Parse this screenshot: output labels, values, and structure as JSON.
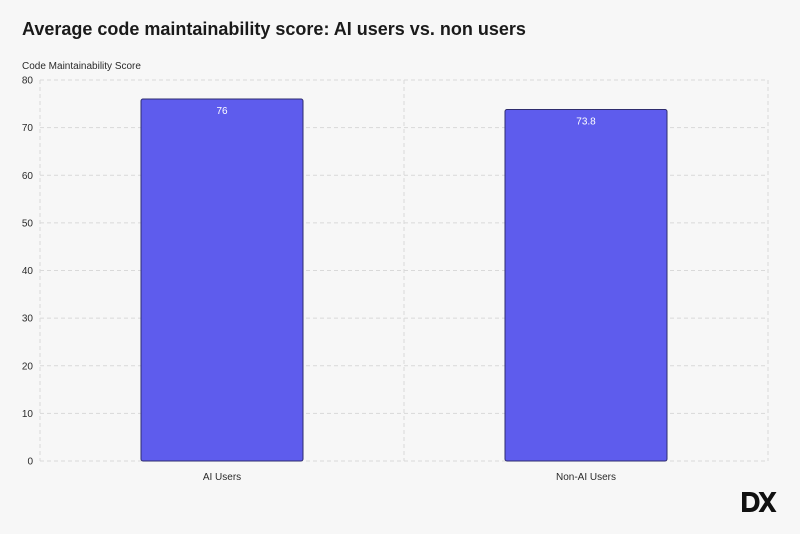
{
  "chart_data": {
    "type": "bar",
    "title": "Average code maintainability score: AI users vs. non users",
    "ylabel": "Code Maintainability Score",
    "xlabel": "",
    "categories": [
      "AI Users",
      "Non-AI Users"
    ],
    "values": [
      76,
      73.8
    ],
    "value_labels": [
      "76",
      "73.8"
    ],
    "ylim": [
      0,
      80
    ],
    "yticks": [
      0,
      10,
      20,
      30,
      40,
      50,
      60,
      70,
      80
    ],
    "grid": true,
    "grid_style": "dashed",
    "colors": {
      "bar": "#5e5ced",
      "bar_edge": "#2e2c6e",
      "grid": "#d9d9d9"
    }
  },
  "logo": {
    "text": "DX"
  }
}
